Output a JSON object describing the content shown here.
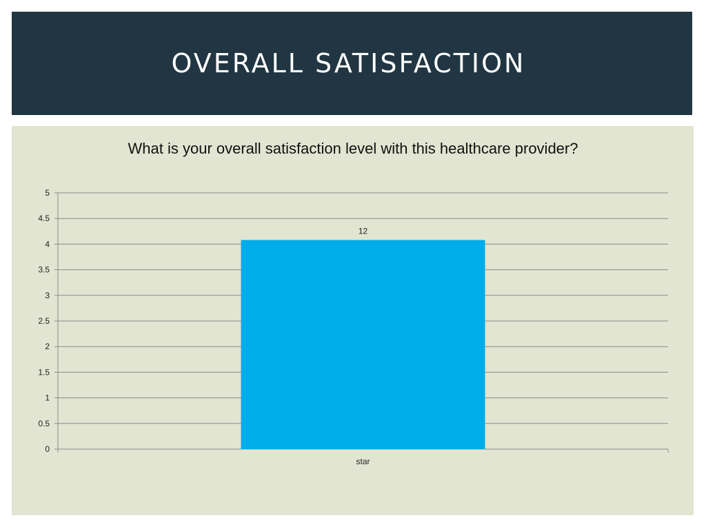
{
  "slide": {
    "title": "Overall Satisfaction"
  },
  "colors": {
    "header_bg": "#213642",
    "content_bg": "#e1e5d1",
    "bar": "#00adeb",
    "gridline": "#8a8a8a"
  },
  "chart_data": {
    "type": "bar",
    "title": "What is your overall satisfaction level with this healthcare provider?",
    "categories": [
      "star"
    ],
    "values": [
      4.08
    ],
    "data_labels": [
      "12"
    ],
    "ylim": [
      0,
      5
    ],
    "yticks": [
      "0",
      "0.5",
      "1",
      "1.5",
      "2",
      "2.5",
      "3",
      "3.5",
      "4",
      "4.5",
      "5"
    ],
    "xlabel": "",
    "ylabel": "",
    "grid": true,
    "legend": "none"
  }
}
